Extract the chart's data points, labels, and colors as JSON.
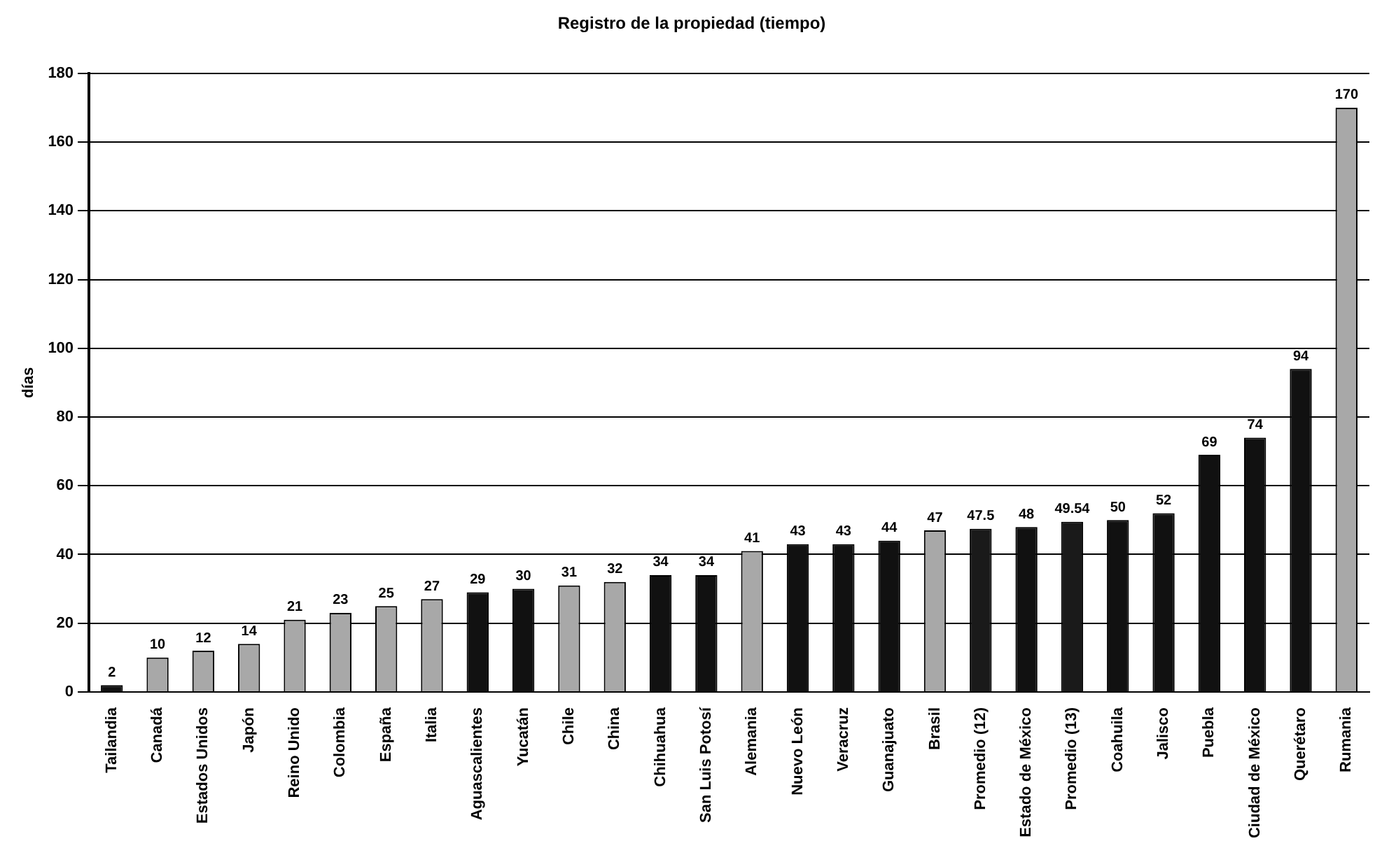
{
  "chart_data": {
    "type": "bar",
    "title": "Registro de la propiedad (tiempo)",
    "ylabel": "días",
    "categories": [
      "Tailandia",
      "Canadá",
      "Estados Unidos",
      "Japón",
      "Reino Unido",
      "Colombia",
      "España",
      "Italia",
      "Aguascalientes",
      "Yucatán",
      "Chile",
      "China",
      "Chihuahua",
      "San Luis Potosí",
      "Alemania",
      "Nuevo León",
      "Veracruz",
      "Guanajuato",
      "Brasil",
      "Promedio (12)",
      "Estado de México",
      "Promedio (13)",
      "Coahuila",
      "Jalisco",
      "Puebla",
      "Ciudad de México",
      "Querétaro",
      "Rumania"
    ],
    "values": [
      2,
      10,
      12,
      14,
      21,
      23,
      25,
      27,
      29,
      30,
      31,
      32,
      34,
      34,
      41,
      43,
      43,
      44,
      47,
      47.5,
      48,
      49.54,
      50,
      52,
      69,
      74,
      94,
      170
    ],
    "colors": [
      "#111111",
      "#a8a8a8",
      "#a8a8a8",
      "#a8a8a8",
      "#a8a8a8",
      "#a8a8a8",
      "#a8a8a8",
      "#a8a8a8",
      "#111111",
      "#111111",
      "#a8a8a8",
      "#a8a8a8",
      "#111111",
      "#111111",
      "#a8a8a8",
      "#111111",
      "#111111",
      "#111111",
      "#a8a8a8",
      "#1a1a1a",
      "#111111",
      "#1a1a1a",
      "#111111",
      "#111111",
      "#111111",
      "#111111",
      "#111111",
      "#a8a8a8"
    ],
    "ylim": [
      0,
      180
    ],
    "yticks": [
      0,
      20,
      40,
      60,
      80,
      100,
      120,
      140,
      160,
      180
    ],
    "grid": "y",
    "data_labels": true,
    "legend": false
  }
}
